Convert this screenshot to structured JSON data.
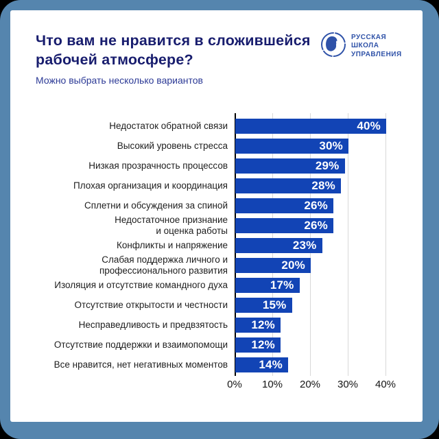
{
  "frame": {
    "border_color": "#5585ae",
    "outer_background": "#000000",
    "card_background": "#ffffff"
  },
  "header": {
    "title": "Что вам не нравится в сложившейся\nрабочей атмосфере?",
    "subtitle": "Можно выбрать несколько вариантов",
    "title_color": "#181d6e",
    "subtitle_color": "#2c3a96"
  },
  "logo": {
    "lines": [
      "РУССКАЯ",
      "ШКОЛА",
      "УПРАВЛЕНИЯ"
    ],
    "color": "#2f52a8",
    "icon": "globe-sketch-icon"
  },
  "chart_data": {
    "type": "bar",
    "orientation": "horizontal",
    "title": "Что вам не нравится в сложившейся рабочей атмосфере?",
    "subtitle": "Можно выбрать несколько вариантов",
    "categories": [
      "Недостаток обратной связи",
      "Высокий уровень стресса",
      "Низкая прозрачность процессов",
      "Плохая организация и координация",
      "Сплетни и обсуждения за спиной",
      "Недостаточное признание\nи оценка работы",
      "Конфликты и напряжение",
      "Слабая поддержка личного и\nпрофессионального развития",
      "Изоляция и отсутствие командного духа",
      "Отсутствие открытости и честности",
      "Несправедливость и предвзятость",
      "Отсутствие поддержки и взаимопомощи",
      "Все нравится, нет негативных моментов"
    ],
    "values": [
      40,
      30,
      29,
      28,
      26,
      26,
      23,
      20,
      17,
      15,
      12,
      12,
      14
    ],
    "value_labels": [
      "40%",
      "30%",
      "29%",
      "28%",
      "26%",
      "26%",
      "23%",
      "20%",
      "17%",
      "15%",
      "12%",
      "12%",
      "14%"
    ],
    "x_ticks": [
      "0%",
      "10%",
      "20%",
      "30%",
      "40%"
    ],
    "x_tick_values": [
      0,
      10,
      20,
      30,
      40
    ],
    "xlim": [
      0,
      45
    ],
    "bar_color": "#1244b5",
    "value_label_color": "#ffffff",
    "grid": true,
    "legend": false
  }
}
